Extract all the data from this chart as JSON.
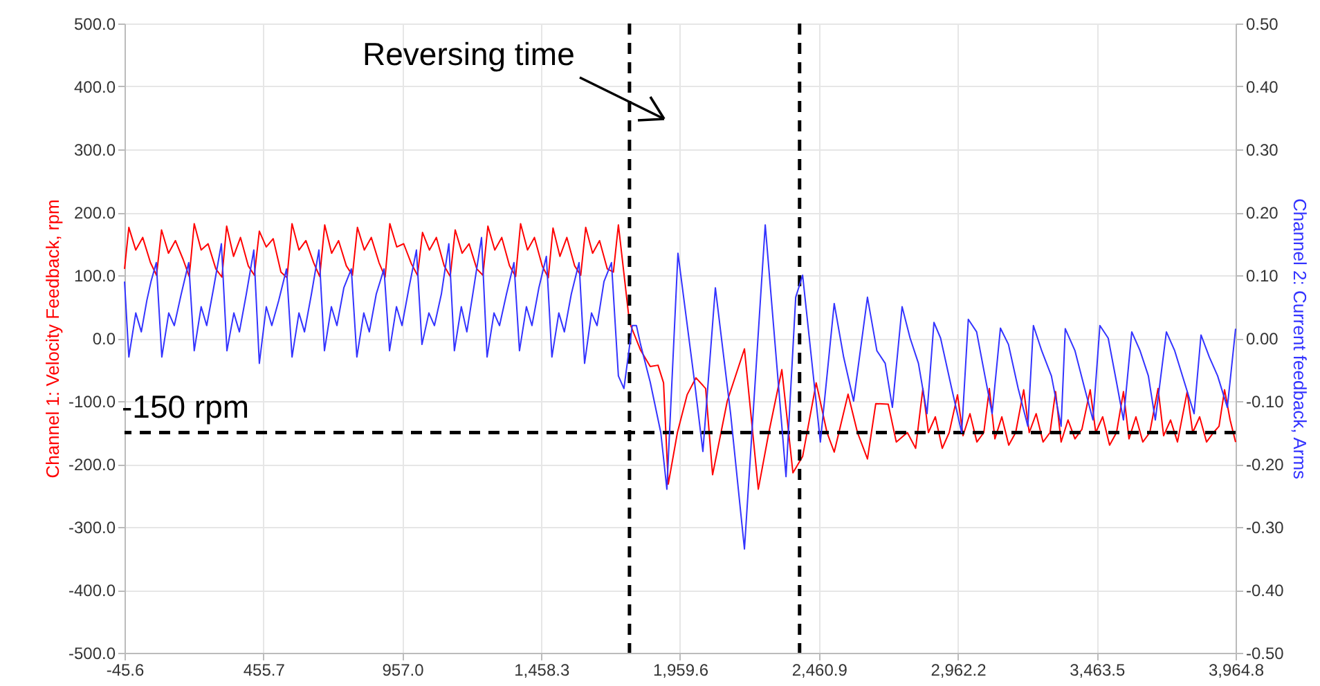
{
  "chart_data": {
    "type": "line",
    "ylabel": "Channel 1: Velocity Feedback, rpm",
    "y2label": "Channel 2: Current feedback, Arms",
    "annotations": [
      "Reversing time"
    ],
    "xlim": [
      -45.6,
      3964.8
    ],
    "xticks": [
      -45.6,
      455.7,
      {
        "value": 957,
        "label": "957.0"
      },
      {
        "value": 1458.3,
        "label": "1,458.3"
      },
      {
        "value": 1959.6,
        "label": "1,959.6"
      },
      {
        "value": 2460.9,
        "label": "2,460.9"
      },
      {
        "value": 2962.2,
        "label": "2,962.2"
      },
      {
        "value": 3463.5,
        "label": "3,463.5"
      },
      {
        "value": 3964.8,
        "label": "3,964.8"
      }
    ],
    "ylim": [
      -500,
      500
    ],
    "yticks": [
      {
        "value": -500,
        "label": "-500.0"
      },
      {
        "value": -400,
        "label": "-400.0"
      },
      {
        "value": -300,
        "label": "-300.0"
      },
      {
        "value": -200,
        "label": "-200.0"
      },
      {
        "value": -100,
        "label": "-100.0"
      },
      {
        "value": 0,
        "label": "0.0"
      },
      {
        "value": 100,
        "label": "100.0"
      },
      {
        "value": 200,
        "label": "200.0"
      },
      {
        "value": 300,
        "label": "300.0"
      },
      {
        "value": 400,
        "label": "400.0"
      },
      {
        "value": 500,
        "label": "500.0"
      }
    ],
    "y2lim": [
      -0.5,
      0.5
    ],
    "y2ticks": [
      {
        "value": -0.5,
        "label": "-0.50"
      },
      {
        "value": -0.4,
        "label": "-0.40"
      },
      {
        "value": -0.3,
        "label": "-0.30"
      },
      {
        "value": -0.2,
        "label": "-0.20"
      },
      {
        "value": -0.1,
        "label": "-0.10"
      },
      {
        "value": 0,
        "label": "0.00"
      },
      {
        "value": 0.1,
        "label": "0.10"
      },
      {
        "value": 0.2,
        "label": "0.20"
      },
      {
        "value": 0.3,
        "label": "0.30"
      },
      {
        "value": 0.4,
        "label": "0.40"
      },
      {
        "value": 0.5,
        "label": "0.50"
      }
    ],
    "grid": true,
    "line_style": "solid",
    "ref_lines": [
      {
        "axis": "y",
        "value": -150,
        "label": "-150 rpm",
        "color": "#000000",
        "line_style": "dashed"
      },
      {
        "axis": "x",
        "value": 1777,
        "color": "#000000",
        "line_style": "dashed"
      },
      {
        "axis": "x",
        "value": 2391,
        "color": "#000000",
        "line_style": "dashed"
      }
    ],
    "series": [
      {
        "color": "#ff0000",
        "x": [
          -45.6,
          -30,
          -5,
          20,
          48,
          70,
          88,
          113,
          138,
          166,
          188,
          206,
          231,
          256,
          284,
          306,
          323,
          348,
          373,
          401,
          423,
          441,
          466,
          491,
          519,
          541,
          559,
          584,
          609,
          637,
          659,
          677,
          702,
          727,
          755,
          777,
          795,
          820,
          845,
          873,
          895,
          912,
          937,
          962,
          990,
          1012,
          1030,
          1055,
          1080,
          1108,
          1130,
          1148,
          1173,
          1198,
          1226,
          1248,
          1266,
          1291,
          1316,
          1344,
          1366,
          1384,
          1409,
          1434,
          1462,
          1484,
          1501,
          1526,
          1551,
          1579,
          1601,
          1619,
          1644,
          1669,
          1697,
          1719,
          1737,
          1777,
          1817,
          1852,
          1880,
          1900,
          1917,
          1950,
          1985,
          2017,
          2052,
          2077,
          2130,
          2192,
          2242,
          2280,
          2327,
          2367,
          2402,
          2451,
          2490,
          2516,
          2566,
          2600,
          2636,
          2666,
          2711,
          2740,
          2780,
          2810,
          2836,
          2856,
          2881,
          2906,
          2931,
          2961,
          2981,
          3006,
          3031,
          3056,
          3076,
          3096,
          3121,
          3146,
          3171,
          3200,
          3220,
          3245,
          3270,
          3295,
          3315,
          3335,
          3360,
          3385,
          3410,
          3440,
          3460,
          3485,
          3510,
          3535,
          3560,
          3580,
          3605,
          3630,
          3655,
          3685,
          3705,
          3730,
          3755,
          3790,
          3810,
          3835,
          3860,
          3885,
          3905,
          3925,
          3945,
          3964.8
        ],
        "values": [
          110,
          176,
          140,
          160,
          120,
          100,
          172,
          135,
          155,
          125,
          98,
          182,
          140,
          150,
          110,
          97,
          178,
          130,
          160,
          115,
          100,
          170,
          145,
          158,
          105,
          96,
          182,
          140,
          155,
          120,
          98,
          180,
          135,
          155,
          115,
          100,
          176,
          140,
          160,
          120,
          97,
          182,
          145,
          150,
          118,
          100,
          168,
          140,
          160,
          115,
          98,
          172,
          135,
          150,
          110,
          100,
          178,
          140,
          160,
          115,
          98,
          182,
          140,
          160,
          115,
          96,
          175,
          130,
          160,
          115,
          100,
          176,
          135,
          155,
          110,
          105,
          180,
          25,
          -19,
          -45,
          -43,
          -71,
          -232,
          -150,
          -90,
          -63,
          -80,
          -217,
          -100,
          -17,
          -240,
          -150,
          -50,
          -214,
          -188,
          -71,
          -150,
          -181,
          -89,
          -150,
          -192,
          -104,
          -105,
          -165,
          -150,
          -175,
          -80,
          -150,
          -125,
          -175,
          -150,
          -90,
          -155,
          -120,
          -165,
          -150,
          -80,
          -160,
          -125,
          -170,
          -150,
          -82,
          -150,
          -120,
          -165,
          -150,
          -85,
          -165,
          -130,
          -160,
          -145,
          -82,
          -150,
          -125,
          -170,
          -150,
          -85,
          -160,
          -125,
          -165,
          -150,
          -80,
          -155,
          -130,
          -165,
          -85,
          -150,
          -125,
          -165,
          -150,
          -140,
          -82,
          -130,
          -165
        ]
      },
      {
        "color": "#3333ff",
        "axis": "y2",
        "x": [
          -45.6,
          -30,
          -5,
          15,
          35,
          50,
          69,
          89,
          114,
          134,
          159,
          186,
          206,
          231,
          251,
          276,
          304,
          324,
          349,
          369,
          394,
          421,
          441,
          466,
          486,
          511,
          539,
          559,
          584,
          604,
          629,
          656,
          676,
          701,
          721,
          746,
          773,
          793,
          818,
          838,
          863,
          891,
          911,
          936,
          956,
          981,
          1008,
          1028,
          1053,
          1073,
          1098,
          1125,
          1145,
          1170,
          1190,
          1215,
          1243,
          1263,
          1288,
          1308,
          1333,
          1360,
          1380,
          1405,
          1425,
          1450,
          1477,
          1497,
          1522,
          1542,
          1567,
          1595,
          1615,
          1640,
          1660,
          1685,
          1712,
          1737,
          1757,
          1787,
          1802,
          1817,
          1852,
          1890,
          1912,
          1952,
          2012,
          2042,
          2087,
          2142,
          2192,
          2267,
          2342,
          2377,
          2402,
          2466,
          2516,
          2550,
          2586,
          2636,
          2670,
          2700,
          2726,
          2761,
          2790,
          2820,
          2851,
          2876,
          2900,
          2940,
          2976,
          3000,
          3030,
          3060,
          3086,
          3116,
          3145,
          3180,
          3215,
          3235,
          3265,
          3300,
          3335,
          3350,
          3385,
          3420,
          3450,
          3475,
          3505,
          3535,
          3560,
          3590,
          3620,
          3650,
          3675,
          3715,
          3745,
          3780,
          3815,
          3840,
          3870,
          3900,
          3935,
          3964.8
        ],
        "values": [
          0.09,
          -0.03,
          0.04,
          0.01,
          0.06,
          0.09,
          0.12,
          -0.03,
          0.04,
          0.02,
          0.07,
          0.12,
          -0.02,
          0.05,
          0.02,
          0.08,
          0.15,
          -0.02,
          0.04,
          0.01,
          0.07,
          0.14,
          -0.04,
          0.05,
          0.02,
          0.06,
          0.11,
          -0.03,
          0.04,
          0.01,
          0.07,
          0.14,
          -0.02,
          0.05,
          0.02,
          0.08,
          0.11,
          -0.03,
          0.04,
          0.01,
          0.07,
          0.11,
          -0.02,
          0.05,
          0.02,
          0.08,
          0.14,
          -0.01,
          0.04,
          0.02,
          0.07,
          0.15,
          -0.02,
          0.05,
          0.01,
          0.08,
          0.16,
          -0.03,
          0.04,
          0.02,
          0.07,
          0.12,
          -0.02,
          0.05,
          0.02,
          0.08,
          0.13,
          -0.03,
          0.04,
          0.01,
          0.07,
          0.12,
          -0.04,
          0.04,
          0.02,
          0.09,
          0.12,
          -0.06,
          -0.08,
          0.02,
          0.02,
          -0.01,
          -0.07,
          -0.15,
          -0.24,
          0.135,
          -0.07,
          -0.18,
          0.08,
          -0.12,
          -0.335,
          0.18,
          -0.22,
          0.065,
          0.1,
          -0.165,
          0.055,
          -0.03,
          -0.1,
          0.065,
          -0.02,
          -0.04,
          -0.11,
          0.05,
          0,
          -0.04,
          -0.12,
          0.025,
          0,
          -0.08,
          -0.15,
          0.03,
          0.01,
          -0.06,
          -0.12,
          0.016,
          -0.01,
          -0.08,
          -0.14,
          0.02,
          -0.02,
          -0.06,
          -0.14,
          0.015,
          -0.02,
          -0.08,
          -0.13,
          0.02,
          0,
          -0.07,
          -0.13,
          0.01,
          -0.02,
          -0.06,
          -0.13,
          0.01,
          -0.02,
          -0.07,
          -0.12,
          0.005,
          -0.03,
          -0.06,
          -0.11,
          0.015
        ]
      }
    ]
  }
}
